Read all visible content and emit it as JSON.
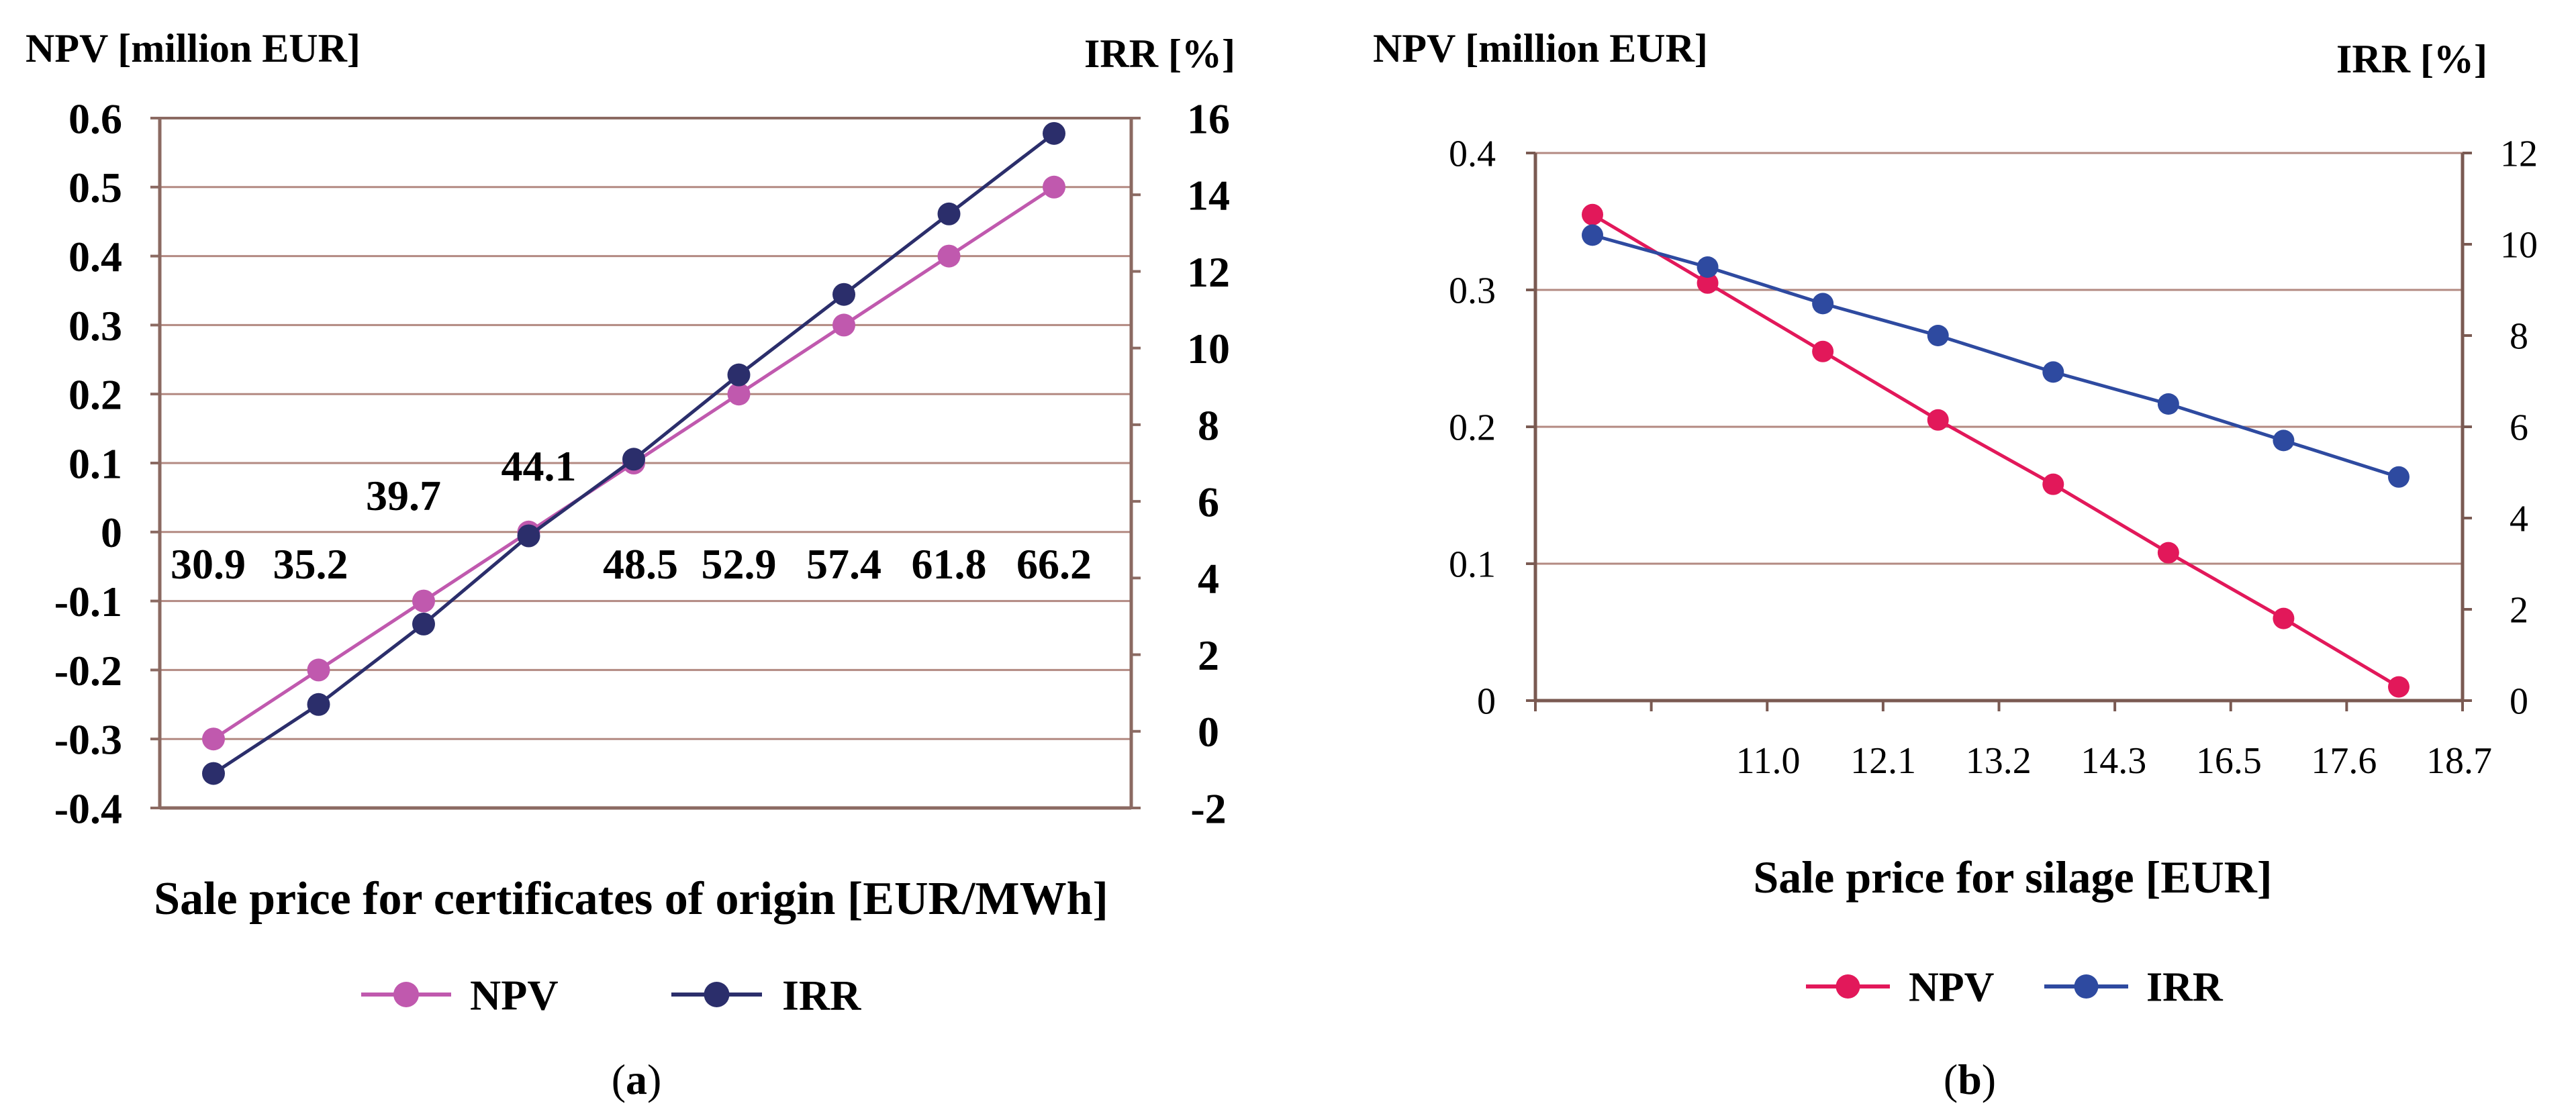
{
  "chart_data": [
    {
      "type": "line",
      "panel_label": "a",
      "left_axis_title": "NPV [million EUR]",
      "right_axis_title": "IRR [%]",
      "xlabel": "Sale price for certificates of origin [EUR/MWh]",
      "categories": [
        "30.9",
        "35.2",
        "39.7",
        "44.1",
        "48.5",
        "52.9",
        "57.4",
        "61.8",
        "66.2"
      ],
      "ylim": [
        -0.4,
        0.6
      ],
      "yticks": [
        "-0.4",
        "-0.3",
        "-0.2",
        "-0.1",
        "0",
        "0.1",
        "0.2",
        "0.3",
        "0.4",
        "0.5",
        "0.6"
      ],
      "y2lim": [
        -2,
        16
      ],
      "y2ticks": [
        "-2",
        "0",
        "2",
        "4",
        "6",
        "8",
        "10",
        "12",
        "14",
        "16"
      ],
      "series": [
        {
          "name": "NPV",
          "axis": "left",
          "color": "#c059ae",
          "values": [
            -0.3,
            -0.2,
            -0.1,
            0.0,
            0.1,
            0.2,
            0.3,
            0.4,
            0.5
          ]
        },
        {
          "name": "IRR",
          "axis": "right",
          "color": "#2b2e6b",
          "values": [
            -1.1,
            0.7,
            2.8,
            5.1,
            7.1,
            9.3,
            11.4,
            13.5,
            15.6
          ]
        }
      ],
      "legend": "bottom"
    },
    {
      "type": "line",
      "panel_label": "b",
      "left_axis_title": "NPV [million EUR]",
      "right_axis_title": "IRR [%]",
      "xlabel": "Sale price for silage [EUR]",
      "categories": [
        "",
        "11.0",
        "12.1",
        "13.2",
        "14.3",
        "16.5",
        "17.6",
        "18.7"
      ],
      "ylim": [
        0,
        0.4
      ],
      "yticks": [
        "0",
        "0.1",
        "0.2",
        "0.3",
        "0.4"
      ],
      "y2lim": [
        0,
        12
      ],
      "y2ticks": [
        "0",
        "2",
        "4",
        "6",
        "8",
        "10",
        "12"
      ],
      "series": [
        {
          "name": "NPV",
          "axis": "left",
          "color": "#e2185a",
          "values": [
            0.355,
            0.305,
            0.255,
            0.205,
            0.158,
            0.108,
            0.06,
            0.01
          ]
        },
        {
          "name": "IRR",
          "axis": "right",
          "color": "#2e4aa0",
          "values": [
            10.2,
            9.5,
            8.7,
            8.0,
            7.2,
            6.5,
            5.7,
            4.9
          ]
        }
      ],
      "legend": "bottom"
    }
  ]
}
